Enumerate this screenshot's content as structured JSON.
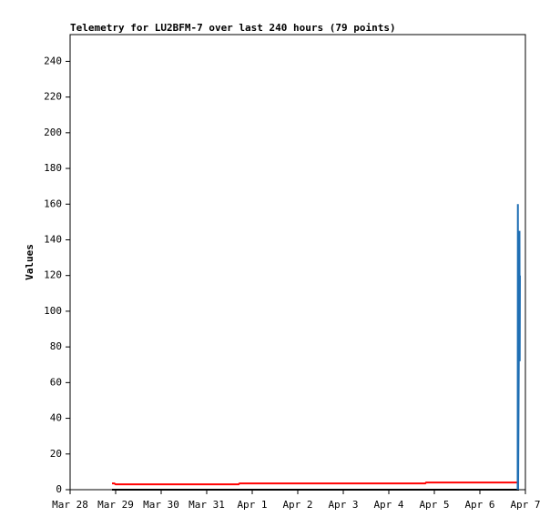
{
  "chart_data": {
    "type": "line",
    "title": "Telemetry for LU2BFM-7 over last 240 hours (79 points)",
    "y_label": "Values",
    "xlim": [
      0,
      10
    ],
    "ylim": [
      0,
      255
    ],
    "xticks": [
      {
        "value": 0,
        "label": "Mar 28"
      },
      {
        "value": 1,
        "label": "Mar 29"
      },
      {
        "value": 2,
        "label": "Mar 30"
      },
      {
        "value": 3,
        "label": "Mar 31"
      },
      {
        "value": 4,
        "label": "Apr 1"
      },
      {
        "value": 5,
        "label": "Apr 2"
      },
      {
        "value": 6,
        "label": "Apr 3"
      },
      {
        "value": 7,
        "label": "Apr 4"
      },
      {
        "value": 8,
        "label": "Apr 5"
      },
      {
        "value": 9,
        "label": "Apr 6"
      },
      {
        "value": 10,
        "label": "Apr 7"
      }
    ],
    "yticks": [
      0,
      20,
      40,
      60,
      80,
      100,
      120,
      140,
      160,
      180,
      200,
      220,
      240
    ],
    "series": [
      {
        "color": "#000000",
        "x": [
          0.92,
          9.86
        ],
        "values": [
          0,
          0
        ]
      },
      {
        "color": "#ff0000",
        "x": [
          0.92,
          0.97,
          1.0,
          3.7,
          3.72,
          7.8,
          7.82,
          9.86
        ],
        "values": [
          3.5,
          3.5,
          3,
          3,
          3.5,
          3.5,
          4,
          4
        ]
      },
      {
        "color": "#1f6fb4",
        "x": [
          9.83,
          9.835,
          9.84,
          9.87,
          9.875,
          9.88
        ],
        "values": [
          0,
          160,
          0,
          145,
          72,
          120
        ]
      }
    ]
  }
}
